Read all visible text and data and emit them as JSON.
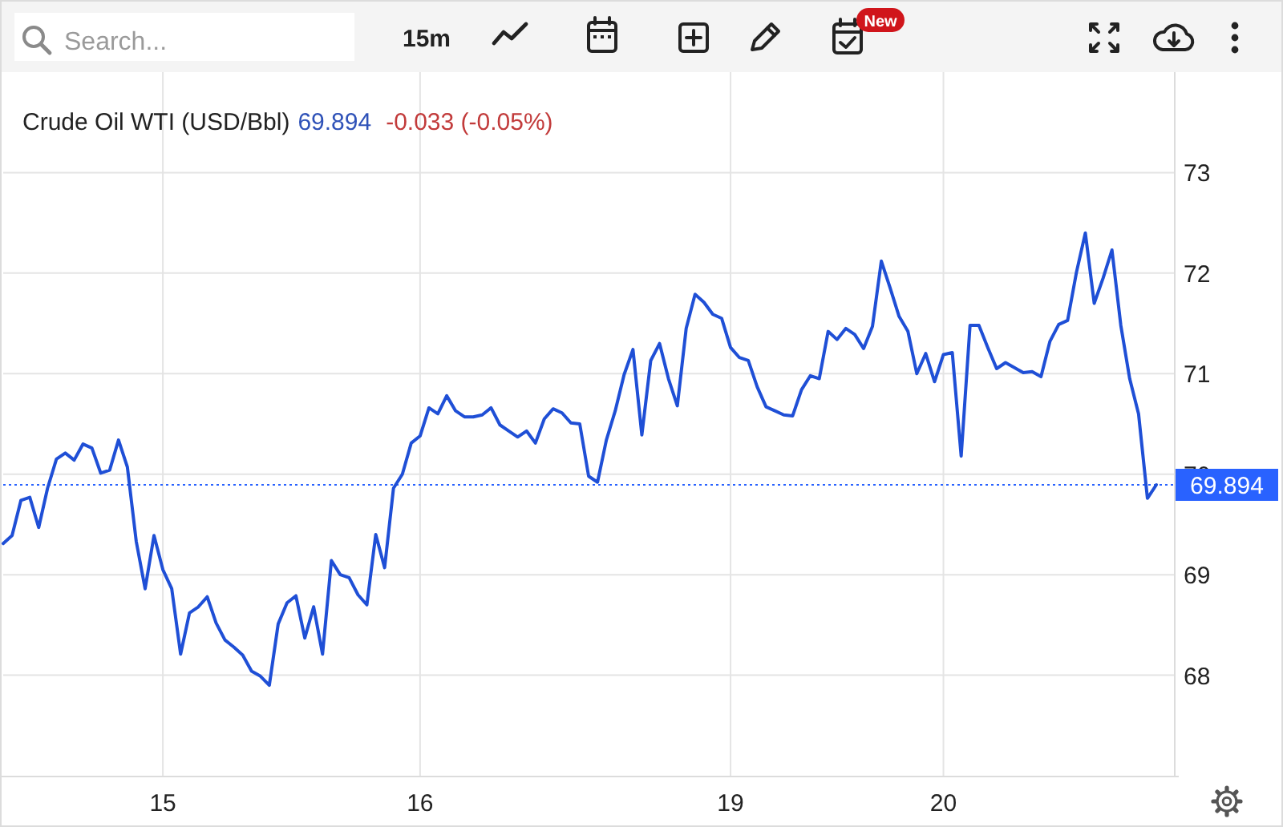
{
  "chart_data": {
    "type": "line",
    "title": "Crude Oil WTI (USD/Bbl)",
    "annotations": [
      "69.894",
      "-0.033 (-0.05%)",
      "Search...",
      "15m",
      "New"
    ],
    "categories": [
      null,
      null,
      null,
      null,
      null,
      null,
      null,
      null,
      null,
      null,
      null,
      null,
      null,
      null,
      null,
      null,
      null,
      null,
      "15",
      null,
      null,
      null,
      null,
      null,
      null,
      null,
      null,
      null,
      null,
      null,
      null,
      null,
      null,
      null,
      null,
      null,
      null,
      null,
      null,
      null,
      null,
      null,
      null,
      null,
      null,
      null,
      null,
      "16",
      null,
      null,
      null,
      null,
      null,
      null,
      null,
      null,
      null,
      null,
      null,
      null,
      null,
      null,
      null,
      null,
      null,
      null,
      null,
      null,
      null,
      null,
      null,
      null,
      null,
      null,
      null,
      null,
      null,
      null,
      null,
      null,
      null,
      null,
      "19",
      null,
      null,
      null,
      null,
      null,
      null,
      null,
      null,
      null,
      null,
      null,
      null,
      null,
      null,
      null,
      null,
      null,
      null,
      null,
      null,
      null,
      null,
      null,
      "20",
      null,
      null,
      null,
      null,
      null,
      null,
      null,
      null,
      null,
      null,
      null,
      null,
      null,
      null,
      null,
      null,
      null,
      null,
      null,
      null,
      null,
      null,
      null,
      null
    ],
    "values": [
      69.31,
      69.39,
      69.74,
      69.77,
      69.47,
      69.86,
      70.15,
      70.21,
      70.14,
      70.3,
      70.26,
      70.01,
      70.04,
      70.34,
      70.07,
      69.33,
      68.86,
      69.39,
      69.05,
      68.86,
      68.21,
      68.62,
      68.68,
      68.78,
      68.52,
      68.35,
      68.28,
      68.2,
      68.04,
      67.99,
      67.9,
      68.51,
      68.72,
      68.79,
      68.37,
      68.68,
      68.21,
      69.14,
      69.0,
      68.97,
      68.8,
      68.7,
      69.4,
      69.07,
      69.86,
      70.0,
      70.31,
      70.38,
      70.66,
      70.6,
      70.78,
      70.63,
      70.57,
      70.57,
      70.59,
      70.66,
      70.49,
      70.43,
      70.37,
      70.43,
      70.31,
      70.55,
      70.65,
      70.61,
      70.51,
      70.5,
      69.98,
      69.92,
      70.34,
      70.63,
      70.99,
      71.24,
      70.39,
      71.13,
      71.3,
      70.95,
      70.68,
      71.45,
      71.79,
      71.71,
      71.59,
      71.55,
      71.26,
      71.16,
      71.13,
      70.87,
      70.67,
      70.63,
      70.59,
      70.58,
      70.84,
      70.98,
      70.95,
      71.42,
      71.34,
      71.45,
      71.39,
      71.25,
      71.47,
      72.12,
      71.85,
      71.57,
      71.42,
      71.0,
      71.2,
      70.92,
      71.19,
      71.21,
      70.18,
      71.48,
      71.48,
      71.26,
      71.05,
      71.11,
      71.06,
      71.01,
      71.02,
      70.97,
      71.32,
      71.49,
      71.53,
      72.01,
      72.4,
      71.7,
      71.95,
      72.23,
      71.48,
      70.95,
      70.6,
      69.76,
      69.894
    ],
    "color": "#1f4fd6",
    "ylim": [
      67,
      74
    ],
    "yticks": [
      68,
      69,
      70,
      71,
      72,
      73
    ],
    "grid": true,
    "ref_lines": [
      {
        "axis": "y",
        "value": 69.894,
        "label": "69.894",
        "color": "#2962ff",
        "line_style": "dotted"
      }
    ]
  }
}
